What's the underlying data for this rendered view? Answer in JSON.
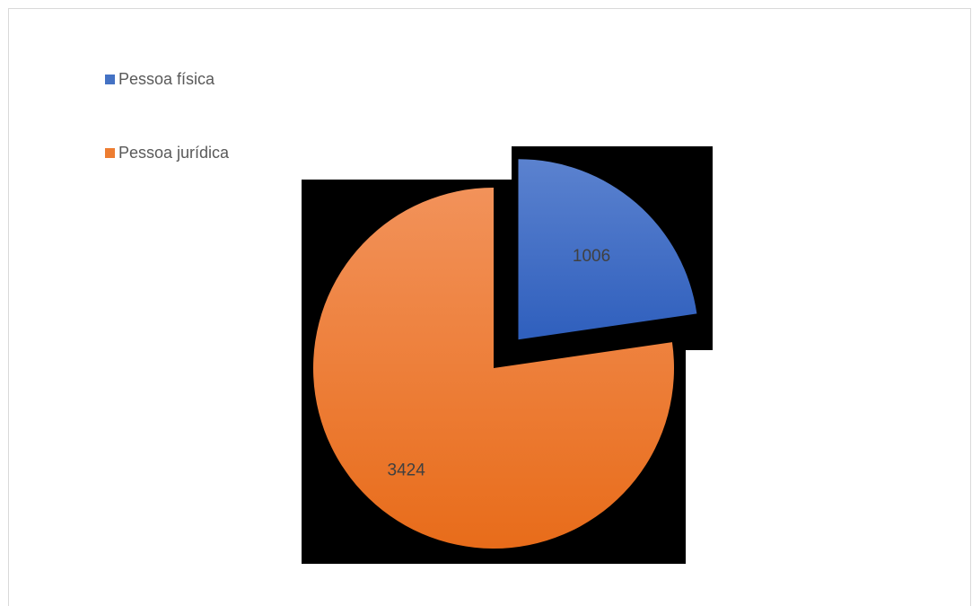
{
  "chart_data": {
    "type": "pie",
    "title": "",
    "categories": [
      "Pessoa física",
      "Pessoa jurídica"
    ],
    "values": [
      1006,
      3424
    ],
    "data_labels": [
      "1006",
      "3424"
    ],
    "exploded": [
      true,
      false
    ],
    "legend_position": "top-left",
    "colors": {
      "Pessoa física": "#4472c4",
      "Pessoa jurídica": "#ed7d31"
    }
  },
  "legend": {
    "items": [
      {
        "label": "Pessoa física",
        "color": "#4472c4"
      },
      {
        "label": "Pessoa jurídica",
        "color": "#ed7d31"
      }
    ]
  }
}
